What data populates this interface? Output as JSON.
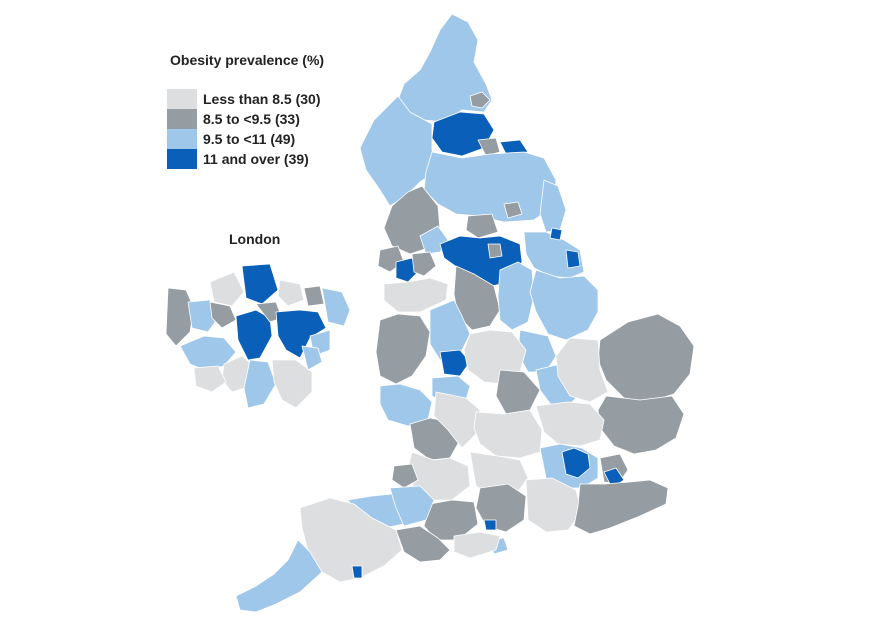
{
  "legend": {
    "title": "Obesity prevalence (%)",
    "items": [
      {
        "label": "Less than 8.5 (30)",
        "color": "#dcdee0",
        "class": "c1"
      },
      {
        "label": "8.5 to <9.5 (33)",
        "color": "#959ca2",
        "class": "c2"
      },
      {
        "label": "9.5 to <11 (49)",
        "color": "#9fc7ea",
        "class": "c3"
      },
      {
        "label": "11 and over (39)",
        "color": "#0a5fb8",
        "class": "c4"
      }
    ]
  },
  "inset": {
    "title": "London"
  }
}
